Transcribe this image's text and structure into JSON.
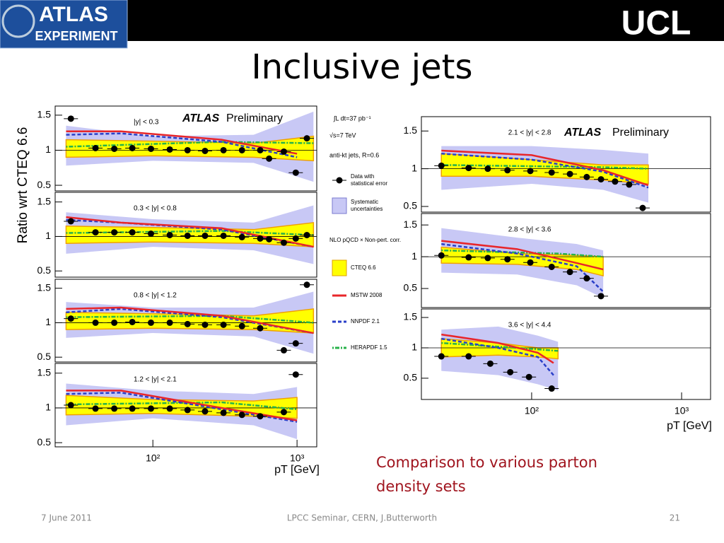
{
  "slide": {
    "logo_left": [
      "ATLAS",
      "EXPERIMENT"
    ],
    "logo_right": "UCL",
    "title": "Inclusive jets",
    "caption": [
      "Comparison to various parton",
      "density sets"
    ],
    "footer": {
      "date": "7 June 2011",
      "event": "LPCC Seminar, CERN, J.Butterworth",
      "page": "21"
    },
    "y_label": "Ratio wrt CTEQ 6.6",
    "x_label": "pT [GeV]",
    "annotation_strong": "ATLAS",
    "annotation": "Preliminary",
    "info": [
      "∫L dt=37 pb⁻¹",
      "√s=7 TeV",
      "anti-kt  jets,  R=0.6"
    ],
    "legend_heading": "NLO pQCD × Non-pert. corr.",
    "legend": [
      {
        "name": "Data with statistical error",
        "color": "#000000"
      },
      {
        "name": "Systematic uncertainties",
        "color": "#c8c8f5"
      },
      {
        "name": "CTEQ 6.6",
        "color": "#ffff00"
      },
      {
        "name": "MSTW 2008",
        "color": "#e8262a"
      },
      {
        "name": "NNPDF 2.1",
        "color": "#2a3fc8"
      },
      {
        "name": "HERAPDF 1.5",
        "color": "#27b24a"
      }
    ]
  },
  "chart_data": [
    {
      "type": "scatter",
      "label": "|y| < 0.3",
      "log_x": true,
      "xlim": [
        21,
        1370
      ],
      "ylim": [
        0.42,
        1.63
      ],
      "yticks": [
        0.5,
        1,
        1.5
      ],
      "data": {
        "x": [
          27,
          40,
          54,
          72,
          97,
          131,
          174,
          230,
          309,
          415,
          555,
          640,
          810,
          980,
          1170
        ],
        "values": [
          1.45,
          1.03,
          1.02,
          1.03,
          1.02,
          1.01,
          1.0,
          0.99,
          1.0,
          1.0,
          1.0,
          0.88,
          0.98,
          0.68,
          1.17
        ]
      },
      "syst": {
        "x": [
          25,
          100,
          500,
          1300
        ],
        "low": [
          0.78,
          0.85,
          0.82,
          0.55
        ],
        "high": [
          1.35,
          1.2,
          1.22,
          1.55
        ]
      },
      "cteq": {
        "x": [
          25,
          100,
          500,
          1300
        ],
        "low": [
          0.9,
          0.92,
          0.9,
          0.85
        ],
        "high": [
          1.15,
          1.13,
          1.1,
          1.2
        ]
      },
      "mstw": {
        "x": [
          25,
          60,
          300,
          1000
        ],
        "values": [
          1.27,
          1.27,
          1.15,
          0.95
        ]
      },
      "nnpdf": {
        "x": [
          25,
          60,
          300,
          1000
        ],
        "values": [
          1.22,
          1.24,
          1.12,
          0.9
        ]
      },
      "herapdf": {
        "x": [
          25,
          300,
          1300
        ],
        "values": [
          1.05,
          1.12,
          1.1
        ]
      }
    },
    {
      "type": "scatter",
      "label": "0.3 < |y| < 0.8",
      "log_x": true,
      "xlim": [
        21,
        1370
      ],
      "ylim": [
        0.41,
        1.64
      ],
      "yticks": [
        0.5,
        1,
        1.5
      ],
      "data": {
        "x": [
          27,
          40,
          54,
          72,
          97,
          131,
          174,
          230,
          309,
          415,
          555,
          640,
          810,
          980,
          1170
        ],
        "values": [
          1.22,
          1.06,
          1.06,
          1.06,
          1.04,
          1.02,
          1.01,
          1.01,
          1.01,
          0.99,
          0.97,
          0.96,
          0.91,
          0.97,
          1.02
        ]
      },
      "syst": {
        "x": [
          25,
          100,
          500,
          1300
        ],
        "low": [
          0.75,
          0.85,
          0.8,
          0.6
        ],
        "high": [
          1.35,
          1.25,
          1.2,
          1.45
        ]
      },
      "cteq": {
        "x": [
          25,
          100,
          500,
          1300
        ],
        "low": [
          0.9,
          0.92,
          0.9,
          0.85
        ],
        "high": [
          1.15,
          1.13,
          1.1,
          1.2
        ]
      },
      "mstw": {
        "x": [
          25,
          60,
          300,
          1300
        ],
        "values": [
          1.28,
          1.2,
          1.12,
          0.85
        ]
      },
      "nnpdf": {
        "x": [
          25,
          60,
          300,
          1300
        ],
        "values": [
          1.24,
          1.2,
          1.1,
          0.85
        ]
      },
      "herapdf": {
        "x": [
          25,
          300,
          1300
        ],
        "values": [
          1.05,
          1.08,
          1.02
        ]
      }
    },
    {
      "type": "scatter",
      "label": "0.8 < |y| < 1.2",
      "log_x": true,
      "xlim": [
        21,
        1370
      ],
      "ylim": [
        0.43,
        1.63
      ],
      "yticks": [
        0.5,
        1,
        1.5
      ],
      "data": {
        "x": [
          27,
          40,
          54,
          72,
          97,
          131,
          174,
          230,
          309,
          415,
          555,
          810,
          980,
          1170
        ],
        "values": [
          1.06,
          1.0,
          1.0,
          1.01,
          1.0,
          1.0,
          0.98,
          0.97,
          0.97,
          0.95,
          0.92,
          0.6,
          0.7,
          1.55
        ]
      },
      "syst": {
        "x": [
          25,
          100,
          500,
          1300
        ],
        "low": [
          0.78,
          0.85,
          0.8,
          0.55
        ],
        "high": [
          1.3,
          1.22,
          1.22,
          1.45
        ]
      },
      "cteq": {
        "x": [
          25,
          100,
          500,
          1300
        ],
        "low": [
          0.9,
          0.92,
          0.9,
          0.85
        ],
        "high": [
          1.15,
          1.13,
          1.1,
          1.2
        ]
      },
      "mstw": {
        "x": [
          25,
          60,
          300,
          1300
        ],
        "values": [
          1.2,
          1.22,
          1.1,
          0.85
        ]
      },
      "nnpdf": {
        "x": [
          25,
          60,
          300,
          1300
        ],
        "values": [
          1.15,
          1.2,
          1.08,
          0.85
        ]
      },
      "herapdf": {
        "x": [
          25,
          300,
          1300
        ],
        "values": [
          1.08,
          1.1,
          1.0
        ]
      }
    },
    {
      "type": "scatter",
      "label": "1.2 < |y| < 2.1",
      "log_x": true,
      "xlim": [
        21,
        1370
      ],
      "ylim": [
        0.44,
        1.64
      ],
      "yticks": [
        0.5,
        1,
        1.5
      ],
      "xticks": [
        {
          "value": 100,
          "label": "10²"
        },
        {
          "value": 1000,
          "label": "10³"
        }
      ],
      "data": {
        "x": [
          27,
          40,
          54,
          72,
          97,
          131,
          174,
          230,
          309,
          415,
          555,
          810,
          980
        ],
        "values": [
          1.04,
          0.99,
          0.99,
          0.99,
          0.99,
          0.99,
          0.97,
          0.95,
          0.93,
          0.9,
          0.88,
          0.94,
          1.48
        ]
      },
      "syst": {
        "x": [
          25,
          100,
          500,
          1000
        ],
        "low": [
          0.75,
          0.85,
          0.75,
          0.55
        ],
        "high": [
          1.35,
          1.25,
          1.2,
          1.3
        ]
      },
      "cteq": {
        "x": [
          25,
          100,
          500,
          1000
        ],
        "low": [
          0.9,
          0.92,
          0.88,
          0.85
        ],
        "high": [
          1.18,
          1.12,
          1.1,
          1.15
        ]
      },
      "mstw": {
        "x": [
          25,
          60,
          300,
          1000
        ],
        "values": [
          1.25,
          1.25,
          1.0,
          0.82
        ]
      },
      "nnpdf": {
        "x": [
          25,
          60,
          300,
          1000
        ],
        "values": [
          1.2,
          1.22,
          0.98,
          0.8
        ]
      },
      "herapdf": {
        "x": [
          25,
          300,
          1000
        ],
        "values": [
          1.05,
          1.08,
          0.98
        ]
      }
    },
    {
      "type": "scatter",
      "label": "2.1 < |y| < 2.8",
      "log_x": true,
      "xlim": [
        18.4,
        1560
      ],
      "ylim": [
        0.425,
        1.69
      ],
      "yticks": [
        0.5,
        1,
        1.5
      ],
      "data": {
        "x": [
          25,
          38,
          51,
          69,
          98,
          136,
          180,
          233,
          290,
          360,
          447,
          550
        ],
        "values": [
          1.04,
          1.01,
          1.0,
          0.98,
          0.97,
          0.95,
          0.93,
          0.89,
          0.86,
          0.83,
          0.79,
          0.48
        ]
      },
      "syst": {
        "x": [
          25,
          100,
          300,
          600
        ],
        "low": [
          0.72,
          0.8,
          0.72,
          0.55
        ],
        "high": [
          1.3,
          1.3,
          1.25,
          1.2
        ]
      },
      "cteq": {
        "x": [
          25,
          100,
          300,
          600
        ],
        "low": [
          0.9,
          0.9,
          0.85,
          0.8
        ],
        "high": [
          1.2,
          1.12,
          1.05,
          1.05
        ]
      },
      "mstw": {
        "x": [
          25,
          100,
          300,
          600
        ],
        "values": [
          1.24,
          1.18,
          0.98,
          0.78
        ]
      },
      "nnpdf": {
        "x": [
          25,
          100,
          300,
          600
        ],
        "values": [
          1.2,
          1.12,
          0.96,
          0.75
        ]
      },
      "herapdf": {
        "x": [
          25,
          300,
          600
        ],
        "values": [
          1.05,
          1.02,
          1.0
        ]
      }
    },
    {
      "type": "scatter",
      "label": "2.8 < |y| < 3.6",
      "log_x": true,
      "xlim": [
        18.4,
        1560
      ],
      "ylim": [
        0.2,
        1.68
      ],
      "yticks": [
        0.5,
        1,
        1.5
      ],
      "data": {
        "x": [
          25,
          38,
          51,
          69,
          98,
          136,
          180,
          233,
          290
        ],
        "values": [
          1.02,
          0.99,
          0.98,
          0.96,
          0.91,
          0.84,
          0.76,
          0.66,
          0.38
        ]
      },
      "syst": {
        "x": [
          25,
          80,
          200,
          300
        ],
        "low": [
          0.75,
          0.72,
          0.55,
          0.35
        ],
        "high": [
          1.45,
          1.3,
          1.2,
          1.1
        ]
      },
      "cteq": {
        "x": [
          25,
          80,
          200,
          300
        ],
        "low": [
          0.9,
          0.88,
          0.8,
          0.7
        ],
        "high": [
          1.15,
          1.05,
          1.02,
          1.0
        ]
      },
      "mstw": {
        "x": [
          25,
          80,
          200,
          300
        ],
        "values": [
          1.25,
          1.12,
          0.9,
          0.8
        ]
      },
      "nnpdf": {
        "x": [
          25,
          80,
          200,
          300
        ],
        "values": [
          1.2,
          1.05,
          0.85,
          0.45
        ]
      },
      "herapdf": {
        "x": [
          25,
          150,
          300
        ],
        "values": [
          1.1,
          1.05,
          1.0
        ]
      }
    },
    {
      "type": "scatter",
      "label": "3.6 < |y| < 4.4",
      "log_x": true,
      "xlim": [
        18.4,
        1560
      ],
      "ylim": [
        0.15,
        1.64
      ],
      "yticks": [
        0.5,
        1,
        1.5
      ],
      "xticks": [
        {
          "value": 100,
          "label": "10²"
        },
        {
          "value": 1000,
          "label": "10³"
        }
      ],
      "data": {
        "x": [
          25,
          38,
          53,
          72,
          96,
          136
        ],
        "values": [
          0.86,
          0.86,
          0.74,
          0.6,
          0.52,
          0.33
        ]
      },
      "syst": {
        "x": [
          25,
          60,
          110,
          150
        ],
        "low": [
          0.62,
          0.55,
          0.4,
          0.3
        ],
        "high": [
          1.3,
          1.35,
          1.2,
          1.1
        ]
      },
      "cteq": {
        "x": [
          25,
          60,
          110,
          150
        ],
        "low": [
          0.85,
          0.88,
          0.85,
          0.82
        ],
        "high": [
          1.15,
          1.08,
          1.0,
          1.0
        ]
      },
      "mstw": {
        "x": [
          25,
          60,
          110,
          140
        ],
        "values": [
          1.22,
          1.08,
          0.92,
          0.75
        ]
      },
      "nnpdf": {
        "x": [
          25,
          60,
          110,
          140
        ],
        "values": [
          1.15,
          1.0,
          0.85,
          0.55
        ]
      },
      "herapdf": {
        "x": [
          25,
          80,
          150
        ],
        "values": [
          1.08,
          1.0,
          0.95
        ]
      }
    }
  ]
}
